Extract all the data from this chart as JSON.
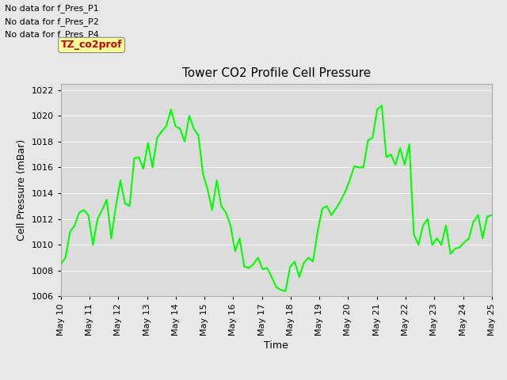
{
  "title": "Tower CO2 Profile Cell Pressure",
  "xlabel": "Time",
  "ylabel": "Cell Pressure (mBar)",
  "ylim": [
    1006,
    1022.5
  ],
  "yticks": [
    1006,
    1008,
    1010,
    1012,
    1014,
    1016,
    1018,
    1020,
    1022
  ],
  "line_color": "#00ff00",
  "line_width": 1.5,
  "fig_bg_color": "#e8e8e8",
  "plot_bg_color": "#dcdcdc",
  "no_data_labels": [
    "No data for f_Pres_P1",
    "No data for f_Pres_P2",
    "No data for f_Pres_P4"
  ],
  "legend_box_color": "#ffff99",
  "legend_box_text_color": "#cc0000",
  "legend_box_text": "TZ_co2prof",
  "xtick_labels": [
    "May 10",
    "May 11",
    "May 12",
    "May 13",
    "May 14",
    "May 15",
    "May 16",
    "May 17",
    "May 18",
    "May 19",
    "May 20",
    "May 21",
    "May 22",
    "May 23",
    "May 24",
    "May 25"
  ],
  "y_values": [
    1008.5,
    1009.0,
    1011.0,
    1011.5,
    1012.5,
    1012.7,
    1012.3,
    1010.0,
    1012.0,
    1012.7,
    1013.5,
    1010.5,
    1013.0,
    1015.0,
    1013.2,
    1013.0,
    1016.7,
    1016.8,
    1015.9,
    1017.9,
    1016.0,
    1018.3,
    1018.8,
    1019.2,
    1020.5,
    1019.2,
    1019.0,
    1018.0,
    1020.0,
    1019.0,
    1018.5,
    1015.5,
    1014.3,
    1012.7,
    1015.0,
    1013.0,
    1012.5,
    1011.5,
    1009.5,
    1010.5,
    1008.3,
    1008.2,
    1008.5,
    1009.0,
    1008.1,
    1008.2,
    1007.5,
    1006.7,
    1006.5,
    1006.4,
    1008.3,
    1008.7,
    1007.5,
    1008.6,
    1009.0,
    1008.7,
    1011.0,
    1012.8,
    1013.0,
    1012.3,
    1012.8,
    1013.4,
    1014.1,
    1015.0,
    1016.1,
    1016.0,
    1016.0,
    1018.1,
    1018.3,
    1020.5,
    1020.8,
    1016.8,
    1017.0,
    1016.2,
    1017.5,
    1016.2,
    1017.8,
    1010.8,
    1010.0,
    1011.5,
    1012.0,
    1010.0,
    1010.5,
    1010.0,
    1011.5,
    1009.3,
    1009.7,
    1009.8,
    1010.2,
    1010.5,
    1011.8,
    1012.3,
    1010.5,
    1012.2,
    1012.3
  ]
}
